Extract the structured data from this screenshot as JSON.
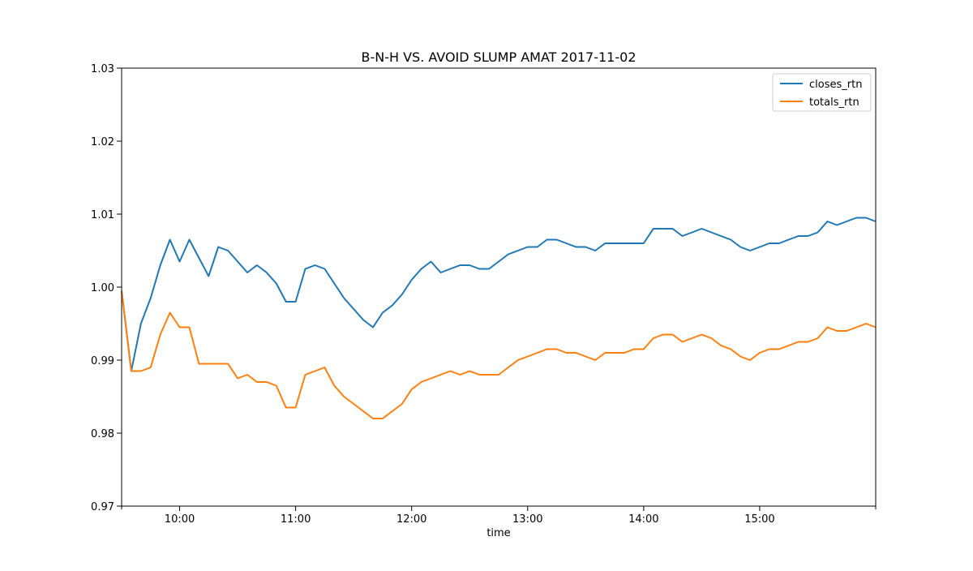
{
  "chart_data": {
    "type": "line",
    "title": "B-N-H VS. AVOID SLUMP AMAT 2017-11-02",
    "xlabel": "time",
    "ylabel": "",
    "xlim": [
      "09:30",
      "16:00"
    ],
    "ylim": [
      0.97,
      1.03
    ],
    "x_ticks": [
      "10:00",
      "11:00",
      "12:00",
      "13:00",
      "14:00",
      "15:00"
    ],
    "y_ticks": [
      "0.97",
      "0.98",
      "0.99",
      "1.00",
      "1.01",
      "1.02",
      "1.03"
    ],
    "grid": false,
    "legend_position": "top-right",
    "x": [
      "09:30",
      "09:35",
      "09:40",
      "09:45",
      "09:50",
      "09:55",
      "10:00",
      "10:05",
      "10:10",
      "10:15",
      "10:20",
      "10:25",
      "10:30",
      "10:35",
      "10:40",
      "10:45",
      "10:50",
      "10:55",
      "11:00",
      "11:05",
      "11:10",
      "11:15",
      "11:20",
      "11:25",
      "11:30",
      "11:35",
      "11:40",
      "11:45",
      "11:50",
      "11:55",
      "12:00",
      "12:05",
      "12:10",
      "12:15",
      "12:20",
      "12:25",
      "12:30",
      "12:35",
      "12:40",
      "12:45",
      "12:50",
      "12:55",
      "13:00",
      "13:05",
      "13:10",
      "13:15",
      "13:20",
      "13:25",
      "13:30",
      "13:35",
      "13:40",
      "13:45",
      "13:50",
      "13:55",
      "14:00",
      "14:05",
      "14:10",
      "14:15",
      "14:20",
      "14:25",
      "14:30",
      "14:35",
      "14:40",
      "14:45",
      "14:50",
      "14:55",
      "15:00",
      "15:05",
      "15:10",
      "15:15",
      "15:20",
      "15:25",
      "15:30",
      "15:35",
      "15:40",
      "15:45",
      "15:50",
      "15:55",
      "16:00"
    ],
    "series": [
      {
        "name": "closes_rtn",
        "color": "#1f77b4",
        "values": [
          0.9995,
          0.9885,
          0.995,
          0.9985,
          1.003,
          1.0065,
          1.0035,
          1.0065,
          1.004,
          1.0015,
          1.0055,
          1.005,
          1.0035,
          1.002,
          1.003,
          1.002,
          1.0005,
          0.998,
          0.998,
          1.0025,
          1.003,
          1.0025,
          1.0005,
          0.9985,
          0.997,
          0.9955,
          0.9945,
          0.9965,
          0.9975,
          0.999,
          1.001,
          1.0025,
          1.0035,
          1.002,
          1.0025,
          1.003,
          1.003,
          1.0025,
          1.0025,
          1.0035,
          1.0045,
          1.005,
          1.0055,
          1.0055,
          1.0065,
          1.0065,
          1.006,
          1.0055,
          1.0055,
          1.005,
          1.006,
          1.006,
          1.006,
          1.006,
          1.006,
          1.008,
          1.008,
          1.008,
          1.007,
          1.0075,
          1.008,
          1.0075,
          1.007,
          1.0065,
          1.0055,
          1.005,
          1.0055,
          1.006,
          1.006,
          1.0065,
          1.007,
          1.007,
          1.0075,
          1.009,
          1.0085,
          1.009,
          1.0095,
          1.0095,
          1.009
        ]
      },
      {
        "name": "totals_rtn",
        "color": "#ff7f0e",
        "values": [
          0.9995,
          0.9885,
          0.9885,
          0.989,
          0.9935,
          0.9965,
          0.9945,
          0.9945,
          0.9895,
          0.9895,
          0.9895,
          0.9895,
          0.9875,
          0.988,
          0.987,
          0.987,
          0.9865,
          0.9835,
          0.9835,
          0.988,
          0.9885,
          0.989,
          0.9865,
          0.985,
          0.984,
          0.983,
          0.982,
          0.982,
          0.983,
          0.984,
          0.986,
          0.987,
          0.9875,
          0.988,
          0.9885,
          0.988,
          0.9885,
          0.988,
          0.988,
          0.988,
          0.989,
          0.99,
          0.9905,
          0.991,
          0.9915,
          0.9915,
          0.991,
          0.991,
          0.9905,
          0.99,
          0.991,
          0.991,
          0.991,
          0.9915,
          0.9915,
          0.993,
          0.9935,
          0.9935,
          0.9925,
          0.993,
          0.9935,
          0.993,
          0.992,
          0.9915,
          0.9905,
          0.99,
          0.991,
          0.9915,
          0.9915,
          0.992,
          0.9925,
          0.9925,
          0.993,
          0.9945,
          0.994,
          0.994,
          0.9945,
          0.995,
          0.9945
        ]
      }
    ]
  }
}
